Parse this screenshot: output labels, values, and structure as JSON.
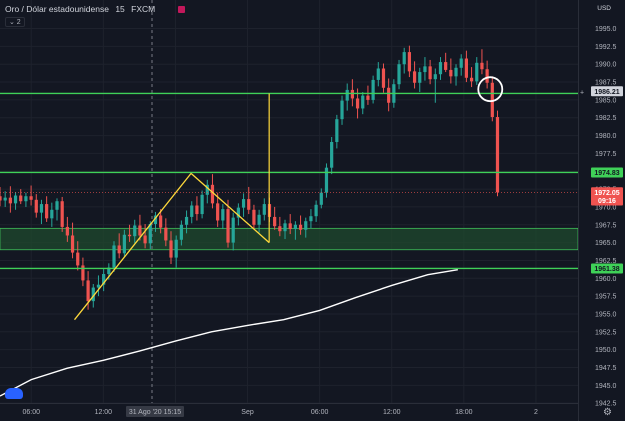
{
  "header": {
    "symbol": "Oro / Dólar estadounidense",
    "interval": "15",
    "exchange": "FXCM",
    "indicator_count": "⌄ 2",
    "currency": "USD"
  },
  "chart_data": {
    "type": "candlestick",
    "title": "Oro / Dólar estadounidense · 15 · FXCM",
    "ylim": [
      1940,
      1999
    ],
    "yticks": [
      1942.5,
      1945.0,
      1947.5,
      1950.0,
      1952.5,
      1955.0,
      1957.5,
      1960.0,
      1962.5,
      1965.0,
      1967.5,
      1970.0,
      1972.5,
      1975.0,
      1977.5,
      1980.0,
      1982.5,
      1985.0,
      1987.5,
      1990.0,
      1992.5,
      1995.0
    ],
    "xticks": [
      {
        "label": "06:00",
        "t": 6
      },
      {
        "label": "12:00",
        "t": 12
      },
      {
        "label": "18:00",
        "t": 18
      },
      {
        "label": "Sep",
        "t": 24
      },
      {
        "label": "06:00",
        "t": 30
      },
      {
        "label": "12:00",
        "t": 36
      },
      {
        "label": "18:00",
        "t": 42
      },
      {
        "label": "2",
        "t": 48
      }
    ],
    "crosshair_label": "31 Ago '20    15:15",
    "xrange": [
      3.4,
      51.5
    ],
    "price_tags": [
      {
        "label": "1986.21",
        "value": 1986.21,
        "style": "dark"
      },
      {
        "label": "1974.83",
        "value": 1974.83,
        "style": "green"
      },
      {
        "label": "1972.05",
        "value": 1972.05,
        "style": "red"
      },
      {
        "label": "09:16",
        "value": 1970.9,
        "style": "red"
      },
      {
        "label": "1961.38",
        "value": 1961.38,
        "style": "green"
      }
    ],
    "horizontal_levels": [
      1985.9,
      1974.83,
      1961.38
    ],
    "zone": [
      1964.0,
      1967.0
    ],
    "last_price": 1972.05,
    "trendlines": [
      [
        [
          9.6,
          1954.2
        ],
        [
          19.3,
          1974.7
        ]
      ],
      [
        [
          19.3,
          1974.7
        ],
        [
          25.8,
          1965.0
        ]
      ]
    ],
    "vertical_marker": {
      "t": 25.8,
      "from": 1965.0,
      "to": 1985.9
    },
    "circle_marker": {
      "t": 44.2,
      "value": 1986.5
    },
    "moving_average": [
      [
        3.4,
        1943.5
      ],
      [
        6,
        1945.8
      ],
      [
        9,
        1947.4
      ],
      [
        12,
        1948.5
      ],
      [
        15,
        1949.8
      ],
      [
        18,
        1951.2
      ],
      [
        21,
        1952.5
      ],
      [
        24,
        1953.4
      ],
      [
        27,
        1954.2
      ],
      [
        30,
        1955.5
      ],
      [
        33,
        1957.3
      ],
      [
        36,
        1959.0
      ],
      [
        39,
        1960.5
      ],
      [
        41.5,
        1961.2
      ]
    ],
    "candles": [
      [
        1971.5,
        1972.8,
        1970.1,
        1970.9
      ],
      [
        1970.9,
        1972.2,
        1970.0,
        1971.3
      ],
      [
        1971.3,
        1972.9,
        1969.2,
        1970.5
      ],
      [
        1970.5,
        1972.1,
        1969.6,
        1971.6
      ],
      [
        1971.6,
        1972.5,
        1970.4,
        1970.8
      ],
      [
        1970.8,
        1972.0,
        1970.0,
        1971.5
      ],
      [
        1971.5,
        1973.0,
        1970.2,
        1971.0
      ],
      [
        1971.0,
        1971.8,
        1968.5,
        1969.2
      ],
      [
        1969.2,
        1971.0,
        1967.6,
        1970.4
      ],
      [
        1970.4,
        1971.5,
        1967.9,
        1968.4
      ],
      [
        1968.4,
        1970.6,
        1967.2,
        1969.6
      ],
      [
        1969.6,
        1971.2,
        1968.1,
        1970.8
      ],
      [
        1970.8,
        1971.4,
        1966.5,
        1967.2
      ],
      [
        1967.2,
        1968.6,
        1965.1,
        1966.0
      ],
      [
        1966.0,
        1967.8,
        1962.8,
        1963.6
      ],
      [
        1963.6,
        1965.2,
        1961.1,
        1961.8
      ],
      [
        1961.8,
        1962.9,
        1958.9,
        1959.7
      ],
      [
        1959.7,
        1961.0,
        1955.6,
        1956.8
      ],
      [
        1956.8,
        1959.2,
        1955.9,
        1958.7
      ],
      [
        1958.7,
        1960.4,
        1957.5,
        1959.1
      ],
      [
        1959.1,
        1961.3,
        1958.2,
        1960.6
      ],
      [
        1960.6,
        1962.1,
        1959.8,
        1961.5
      ],
      [
        1961.5,
        1965.2,
        1960.9,
        1964.6
      ],
      [
        1964.6,
        1966.3,
        1962.8,
        1963.5
      ],
      [
        1963.5,
        1966.8,
        1963.0,
        1966.1
      ],
      [
        1966.1,
        1967.5,
        1965.1,
        1965.9
      ],
      [
        1965.9,
        1968.2,
        1964.9,
        1967.4
      ],
      [
        1967.4,
        1968.9,
        1965.3,
        1966.0
      ],
      [
        1966.0,
        1967.6,
        1964.2,
        1964.9
      ],
      [
        1964.9,
        1968.0,
        1964.1,
        1967.6
      ],
      [
        1967.6,
        1969.3,
        1966.5,
        1968.8
      ],
      [
        1968.8,
        1969.7,
        1966.3,
        1967.1
      ],
      [
        1967.1,
        1968.4,
        1964.5,
        1965.3
      ],
      [
        1965.3,
        1966.6,
        1962.0,
        1962.9
      ],
      [
        1962.9,
        1966.0,
        1961.5,
        1965.4
      ],
      [
        1965.4,
        1968.1,
        1964.6,
        1967.5
      ],
      [
        1967.5,
        1969.5,
        1966.3,
        1968.6
      ],
      [
        1968.6,
        1970.8,
        1967.7,
        1970.2
      ],
      [
        1970.2,
        1971.5,
        1968.1,
        1969.0
      ],
      [
        1969.0,
        1972.3,
        1968.4,
        1971.7
      ],
      [
        1971.7,
        1973.8,
        1970.5,
        1973.1
      ],
      [
        1973.1,
        1974.6,
        1969.8,
        1970.5
      ],
      [
        1970.5,
        1972.0,
        1967.2,
        1968.1
      ],
      [
        1968.1,
        1970.4,
        1966.9,
        1969.7
      ],
      [
        1969.7,
        1971.0,
        1964.3,
        1965.0
      ],
      [
        1965.0,
        1969.2,
        1963.9,
        1968.5
      ],
      [
        1968.5,
        1970.5,
        1967.4,
        1969.9
      ],
      [
        1969.9,
        1971.9,
        1968.6,
        1971.1
      ],
      [
        1971.1,
        1972.8,
        1969.0,
        1969.6
      ],
      [
        1969.6,
        1970.3,
        1966.9,
        1967.5
      ],
      [
        1967.5,
        1969.6,
        1966.4,
        1968.9
      ],
      [
        1968.9,
        1971.2,
        1968.1,
        1970.4
      ],
      [
        1970.4,
        1971.3,
        1967.9,
        1968.6
      ],
      [
        1968.6,
        1970.0,
        1966.8,
        1967.3
      ],
      [
        1967.3,
        1968.6,
        1965.9,
        1966.6
      ],
      [
        1966.6,
        1968.2,
        1965.5,
        1967.7
      ],
      [
        1967.7,
        1969.0,
        1966.2,
        1966.9
      ],
      [
        1966.9,
        1968.0,
        1965.4,
        1967.5
      ],
      [
        1967.5,
        1968.8,
        1966.1,
        1966.8
      ],
      [
        1966.8,
        1968.5,
        1965.7,
        1968.0
      ],
      [
        1968.0,
        1969.7,
        1967.0,
        1968.7
      ],
      [
        1968.7,
        1970.9,
        1967.9,
        1970.3
      ],
      [
        1970.3,
        1972.6,
        1969.8,
        1972.0
      ],
      [
        1972.0,
        1976.1,
        1971.3,
        1975.5
      ],
      [
        1975.5,
        1979.8,
        1974.6,
        1979.1
      ],
      [
        1979.1,
        1982.9,
        1978.2,
        1982.3
      ],
      [
        1982.3,
        1985.6,
        1981.5,
        1984.9
      ],
      [
        1984.9,
        1987.3,
        1983.5,
        1986.4
      ],
      [
        1986.4,
        1987.9,
        1984.1,
        1985.2
      ],
      [
        1985.2,
        1986.6,
        1982.4,
        1983.8
      ],
      [
        1983.8,
        1986.1,
        1983.0,
        1985.6
      ],
      [
        1985.6,
        1987.0,
        1984.3,
        1985.0
      ],
      [
        1985.0,
        1988.4,
        1984.5,
        1987.8
      ],
      [
        1987.8,
        1990.3,
        1986.9,
        1989.4
      ],
      [
        1989.4,
        1990.1,
        1986.0,
        1986.7
      ],
      [
        1986.7,
        1988.0,
        1983.4,
        1984.6
      ],
      [
        1984.6,
        1987.9,
        1983.9,
        1987.2
      ],
      [
        1987.2,
        1990.6,
        1986.5,
        1990.0
      ],
      [
        1990.0,
        1992.3,
        1988.7,
        1991.7
      ],
      [
        1991.7,
        1992.6,
        1988.2,
        1989.0
      ],
      [
        1989.0,
        1990.4,
        1986.6,
        1987.4
      ],
      [
        1987.4,
        1989.5,
        1986.1,
        1988.9
      ],
      [
        1988.9,
        1991.0,
        1987.7,
        1989.7
      ],
      [
        1989.7,
        1990.6,
        1987.2,
        1987.9
      ],
      [
        1987.9,
        1989.4,
        1984.6,
        1988.6
      ],
      [
        1988.6,
        1991.0,
        1987.8,
        1990.3
      ],
      [
        1990.3,
        1991.6,
        1988.9,
        1989.2
      ],
      [
        1989.2,
        1990.8,
        1987.3,
        1988.3
      ],
      [
        1988.3,
        1990.0,
        1987.0,
        1989.5
      ],
      [
        1989.5,
        1991.4,
        1988.4,
        1990.8
      ],
      [
        1990.8,
        1991.9,
        1987.5,
        1988.1
      ],
      [
        1988.1,
        1989.6,
        1986.8,
        1987.6
      ],
      [
        1987.6,
        1991.0,
        1987.1,
        1990.2
      ],
      [
        1990.2,
        1992.1,
        1988.6,
        1989.3
      ],
      [
        1989.3,
        1990.5,
        1986.6,
        1987.4
      ],
      [
        1987.4,
        1988.3,
        1982.0,
        1982.6
      ],
      [
        1982.6,
        1983.5,
        1971.5,
        1972.05
      ]
    ]
  }
}
